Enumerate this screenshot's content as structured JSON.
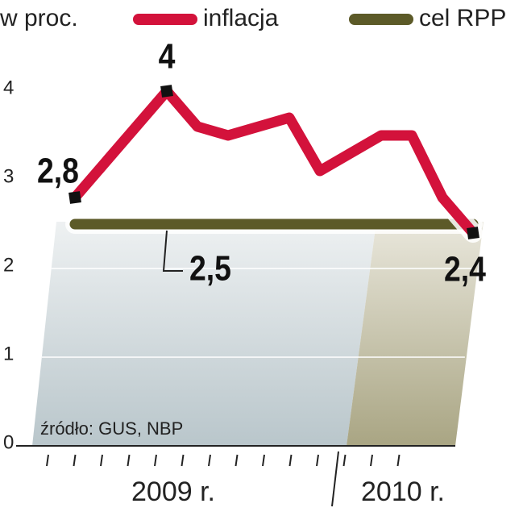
{
  "chart_data": {
    "type": "line",
    "unit_label": "w proc.",
    "source": "źródło: GUS, NBP",
    "categories": [
      null,
      null,
      null,
      null,
      null,
      null,
      null,
      null,
      null,
      null,
      null,
      null,
      null,
      null
    ],
    "year_labels": [
      "2009 r.",
      "2010 r."
    ],
    "series": [
      {
        "name": "inflacja",
        "color": "#d3123b",
        "values": [
          2.8,
          3.2,
          3.6,
          4.0,
          3.6,
          3.5,
          3.6,
          3.7,
          3.1,
          3.3,
          3.5,
          3.5,
          2.8,
          2.4
        ],
        "value_labels": [
          "2,8",
          null,
          null,
          "4",
          null,
          null,
          null,
          null,
          null,
          null,
          null,
          null,
          null,
          "2,4"
        ]
      },
      {
        "name": "cel RPP",
        "color": "#5c5a28",
        "values": [
          2.5,
          2.5,
          2.5,
          2.5,
          2.5,
          2.5,
          2.5,
          2.5,
          2.5,
          2.5,
          2.5,
          2.5,
          2.5,
          2.5
        ],
        "value_labels": [
          null,
          null,
          null,
          "2,5",
          null,
          null,
          null,
          null,
          null,
          null,
          null,
          null,
          null,
          null
        ]
      }
    ],
    "ylim": [
      0,
      5
    ],
    "yticks": [
      0,
      1,
      2,
      3,
      4
    ],
    "grid": true
  }
}
